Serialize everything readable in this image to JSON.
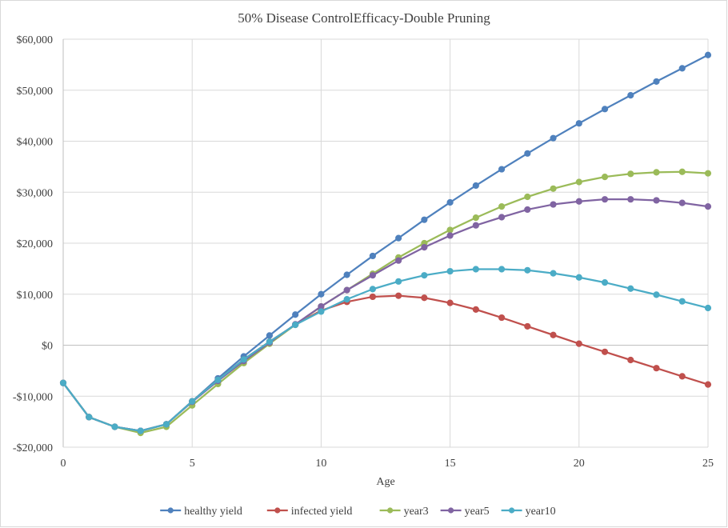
{
  "chart_data": {
    "type": "line",
    "title": "50% Disease  ControlEfficacy-Double  Pruning",
    "xlabel": "Age",
    "ylabel": "",
    "xlim": [
      0,
      25
    ],
    "ylim": [
      -20000,
      60000
    ],
    "x_ticks": [
      0,
      5,
      10,
      15,
      20,
      25
    ],
    "y_ticks": [
      -20000,
      -10000,
      0,
      10000,
      20000,
      30000,
      40000,
      50000,
      60000
    ],
    "y_tick_labels": [
      "-$20,000",
      "-$10,000",
      "$0",
      "$10,000",
      "$20,000",
      "$30,000",
      "$40,000",
      "$50,000",
      "$60,000"
    ],
    "grid": true,
    "legend_position": "bottom",
    "x": [
      0,
      1,
      2,
      3,
      4,
      5,
      6,
      7,
      8,
      9,
      10,
      11,
      12,
      13,
      14,
      15,
      16,
      17,
      18,
      19,
      20,
      21,
      22,
      23,
      24,
      25
    ],
    "series": [
      {
        "name": "healthy yield",
        "color": "#4F81BD",
        "values": [
          -7400,
          -14100,
          -16000,
          -16800,
          -15500,
          -11000,
          -6500,
          -2200,
          1900,
          6000,
          10000,
          13800,
          17500,
          21000,
          24600,
          28000,
          31300,
          34500,
          37600,
          40600,
          43500,
          46300,
          49000,
          51700,
          54300,
          56900
        ]
      },
      {
        "name": "infected yield",
        "color": "#C0504D",
        "values": [
          -7400,
          -14100,
          -16000,
          -16800,
          -15500,
          -11000,
          -6800,
          -2800,
          700,
          4000,
          6800,
          8500,
          9500,
          9700,
          9300,
          8300,
          7000,
          5400,
          3700,
          2000,
          300,
          -1300,
          -2900,
          -4500,
          -6100,
          -7700
        ]
      },
      {
        "name": "year3",
        "color": "#9BBB59",
        "values": [
          -7400,
          -14100,
          -16000,
          -17200,
          -16000,
          -11800,
          -7600,
          -3500,
          300,
          4000,
          7600,
          10800,
          14000,
          17200,
          20000,
          22600,
          25000,
          27200,
          29100,
          30700,
          32000,
          33000,
          33600,
          33900,
          34000,
          33700
        ]
      },
      {
        "name": "year5",
        "color": "#8064A2",
        "values": [
          -7400,
          -14100,
          -16000,
          -16800,
          -15500,
          -11100,
          -7000,
          -3100,
          500,
          4100,
          7600,
          10800,
          13700,
          16600,
          19200,
          21500,
          23500,
          25100,
          26600,
          27600,
          28200,
          28600,
          28600,
          28400,
          27900,
          27200
        ]
      },
      {
        "name": "year10",
        "color": "#4BACC6",
        "values": [
          -7400,
          -14100,
          -16000,
          -16800,
          -15500,
          -11000,
          -6800,
          -2800,
          700,
          4000,
          6600,
          9000,
          11000,
          12500,
          13700,
          14500,
          14900,
          14900,
          14700,
          14100,
          13300,
          12300,
          11100,
          9900,
          8600,
          7300
        ]
      }
    ]
  }
}
